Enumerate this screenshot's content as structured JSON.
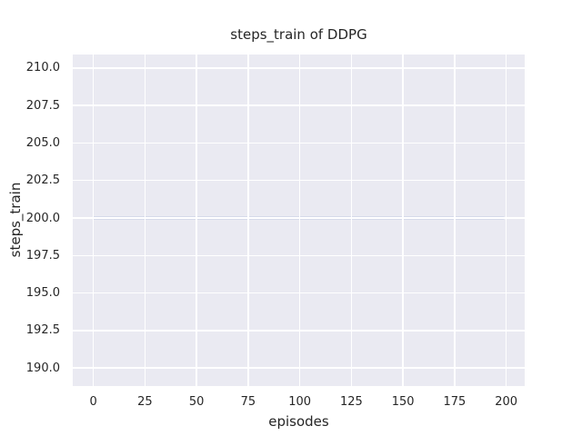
{
  "chart_data": {
    "type": "line",
    "title": "steps_train of DDPG",
    "xlabel": "episodes",
    "ylabel": "steps_train",
    "xlim": [
      -9.95,
      208.95
    ],
    "ylim": [
      188.8,
      210.9
    ],
    "x_ticks": [
      0,
      25,
      50,
      75,
      100,
      125,
      150,
      175,
      200
    ],
    "x_tick_labels": [
      "0",
      "25",
      "50",
      "75",
      "100",
      "125",
      "150",
      "175",
      "200"
    ],
    "y_ticks": [
      190.0,
      192.5,
      195.0,
      197.5,
      200.0,
      202.5,
      205.0,
      207.5,
      210.0
    ],
    "y_tick_labels": [
      "190.0",
      "192.5",
      "195.0",
      "197.5",
      "200.0",
      "202.5",
      "205.0",
      "207.5",
      "210.0"
    ],
    "grid": true,
    "legend": false,
    "series": [
      {
        "name": "steps_train",
        "color": "#4c72b0",
        "linewidth": 2.2,
        "x": [
          0,
          199
        ],
        "y": [
          200,
          200
        ]
      }
    ],
    "style": {
      "figure_background": "#ffffff",
      "plot_background": "#eaeaf2",
      "grid_color": "#ffffff",
      "text_color": "#262626"
    }
  }
}
